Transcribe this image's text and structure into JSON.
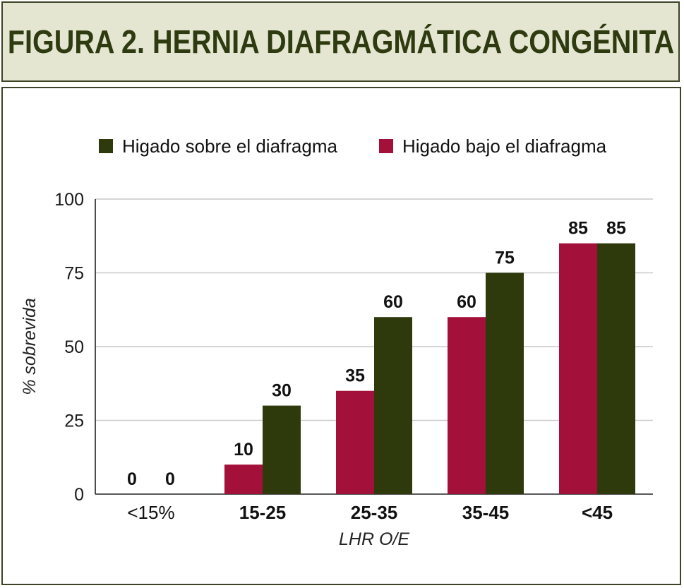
{
  "title": "FIGURA 2. HERNIA DIAFRAGMÁTICA CONGÉNITA",
  "chart_data": {
    "type": "bar",
    "categories": [
      "<15%",
      "15-25",
      "25-35",
      "35-45",
      "<45"
    ],
    "category_bold": [
      false,
      true,
      true,
      true,
      true
    ],
    "series": [
      {
        "name": "Higado bajo el diafragma",
        "color": "#a3113b",
        "values": [
          0,
          10,
          35,
          60,
          85
        ]
      },
      {
        "name": "Higado sobre el diafragma",
        "color": "#2e3a0c",
        "values": [
          0,
          30,
          60,
          75,
          85
        ]
      }
    ],
    "legend_order": [
      1,
      0
    ],
    "xlabel": "LHR O/E",
    "ylabel": "% sobrevida",
    "ylim": [
      0,
      100
    ],
    "yticks": [
      0,
      25,
      50,
      75,
      100
    ],
    "grid": true,
    "legend_position": "top"
  }
}
